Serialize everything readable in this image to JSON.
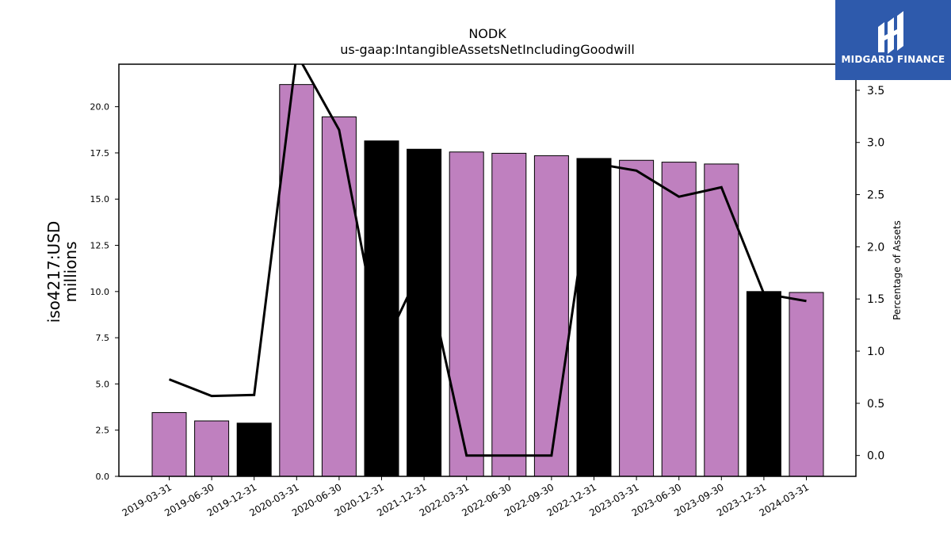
{
  "chart_data": {
    "type": "bar",
    "title": "NODK",
    "subtitle": "us-gaap:IntangibleAssetsNetIncludingGoodwill",
    "ylabel": "iso4217:USD\nmillions",
    "y2label": "Percentage of Assets",
    "ylim": [
      0,
      22.3
    ],
    "y2lim": [
      -0.2,
      3.75
    ],
    "yticks": [
      "0.0",
      "2.5",
      "5.0",
      "7.5",
      "10.0",
      "12.5",
      "15.0",
      "17.5",
      "20.0"
    ],
    "y2ticks": [
      "0.0",
      "0.5",
      "1.0",
      "1.5",
      "2.0",
      "2.5",
      "3.0",
      "3.5"
    ],
    "categories": [
      "2019-03-31",
      "2019-06-30",
      "2019-12-31",
      "2020-03-31",
      "2020-06-30",
      "2020-12-31",
      "2021-12-31",
      "2022-03-31",
      "2022-06-30",
      "2022-09-30",
      "2022-12-31",
      "2023-03-31",
      "2023-06-30",
      "2023-09-30",
      "2023-12-31",
      "2024-03-31"
    ],
    "series": [
      {
        "values": [
          3.45,
          3.0,
          2.88,
          21.2,
          19.45,
          18.15,
          17.7,
          17.55,
          17.48,
          17.35,
          17.2,
          17.1,
          17.0,
          16.9,
          10.0,
          9.95
        ],
        "colors": [
          "#bf80bf",
          "#bf80bf",
          "#000000",
          "#bf80bf",
          "#bf80bf",
          "#000000",
          "#000000",
          "#bf80bf",
          "#bf80bf",
          "#bf80bf",
          "#000000",
          "#bf80bf",
          "#bf80bf",
          "#bf80bf",
          "#000000",
          "#bf80bf"
        ]
      },
      {
        "axis": "right",
        "type": "line",
        "values": [
          0.73,
          0.57,
          0.58,
          3.85,
          3.12,
          1.0,
          1.85,
          0.0,
          0.0,
          0.0,
          2.8,
          2.73,
          2.48,
          2.57,
          1.55,
          1.48
        ]
      }
    ],
    "colors": {
      "highlight": "#bf80bf",
      "dark": "#000000",
      "line": "#000000"
    }
  },
  "logo": {
    "text": "MIDGARD FINANCE",
    "background": "#2e5aac"
  }
}
